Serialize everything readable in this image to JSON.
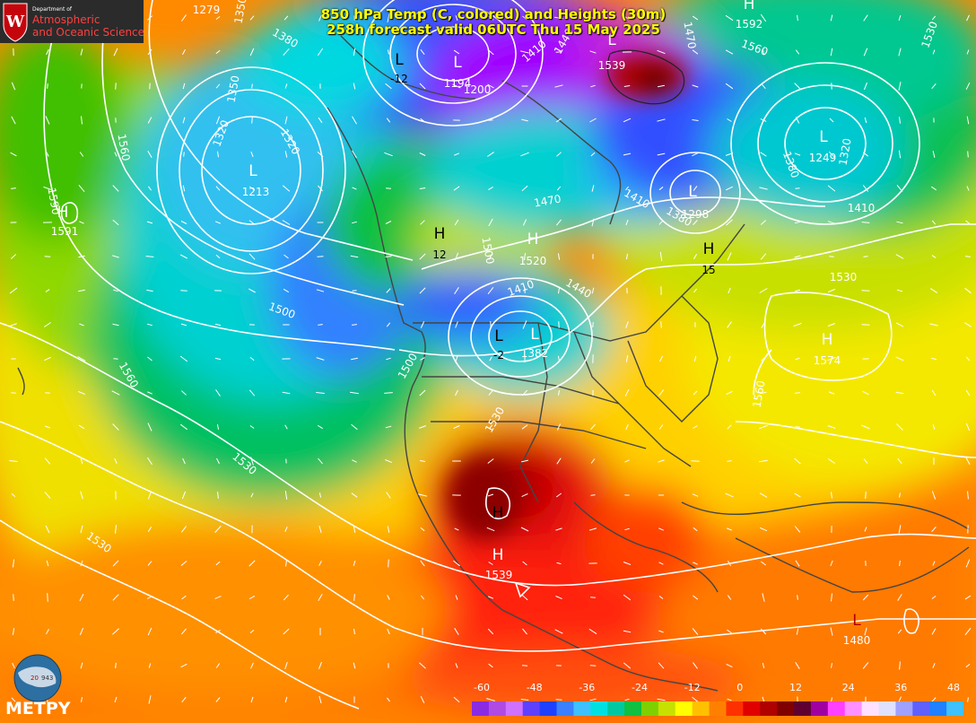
{
  "title": {
    "line1": "850 hPa Temp (C, colored) and Heights (30m)",
    "line2": "258h forecast valid 06UTC Thu 15 May 2025"
  },
  "logo": {
    "line_small": "Department of",
    "line1": "Atmospheric",
    "line2": "and Oceanic Sciences",
    "crest_letter": "W"
  },
  "branding": {
    "metpy": "METPY",
    "globe_text_left": "20",
    "globe_text_right": "943"
  },
  "colorbar": {
    "ticks": [
      "-60",
      "-48",
      "-36",
      "-24",
      "-12",
      "0",
      "12",
      "24",
      "36",
      "48"
    ],
    "palette": [
      "#8a2be2",
      "#b04ae0",
      "#d070ff",
      "#6040ff",
      "#2040ff",
      "#3c80ff",
      "#40c0ff",
      "#00e0e0",
      "#00c8a0",
      "#10c040",
      "#7fd000",
      "#c8e000",
      "#ffff00",
      "#ffc000",
      "#ff8000",
      "#ff3000",
      "#e00000",
      "#b00000",
      "#800000",
      "#600030",
      "#a000a0",
      "#ff40ff",
      "#ff90ff",
      "#ffe0ff",
      "#e0e0ff",
      "#a0a0ff",
      "#6060ff",
      "#2080ff",
      "#40c0ff"
    ]
  },
  "pressure_centers": [
    {
      "type": "L",
      "value": "-12"
    },
    {
      "type": "L",
      "value": "1194"
    },
    {
      "type": "L",
      "value": "1200"
    },
    {
      "type": "L",
      "value": "1539"
    },
    {
      "type": "H",
      "value": "1592"
    },
    {
      "type": "L",
      "value": "1213"
    },
    {
      "type": "H",
      "value": "1591"
    },
    {
      "type": "L",
      "value": "1249"
    },
    {
      "type": "L",
      "value": "1298"
    },
    {
      "type": "H",
      "value": "12"
    },
    {
      "type": "H",
      "value": "1520"
    },
    {
      "type": "H",
      "value": "15"
    },
    {
      "type": "L",
      "value": "-2"
    },
    {
      "type": "L",
      "value": "1382"
    },
    {
      "type": "H",
      "value": "1574"
    },
    {
      "type": "H",
      "value": "1539"
    },
    {
      "type": "L",
      "value": "1480"
    }
  ],
  "contour_labels": [
    "1279",
    "1350",
    "1380",
    "1350",
    "1320",
    "1320",
    "1560",
    "1590",
    "1560",
    "1410",
    "1380",
    "1500",
    "1530",
    "1410",
    "1440",
    "1470",
    "1500",
    "1530",
    "1560",
    "1380",
    "1410",
    "1530",
    "1500",
    "1410",
    "1440",
    "1530",
    "1470",
    "1560",
    "1530",
    "1320"
  ],
  "icons": [
    "wisconsin-crest-icon",
    "globe-icon",
    "wind-arrow-icon"
  ]
}
